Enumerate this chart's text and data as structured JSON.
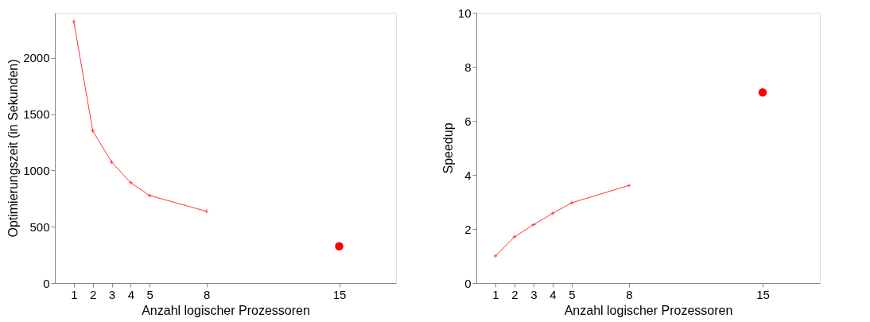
{
  "chart_data": [
    {
      "type": "line",
      "xlabel": "Anzahl logischer Prozessoren",
      "ylabel": "Optimierungszeit (in Sekunden)",
      "xlim": [
        0,
        18
      ],
      "xticks": [
        1,
        2,
        3,
        4,
        5,
        8,
        15
      ],
      "ylim": [
        0,
        2400
      ],
      "yticks": [
        0,
        500,
        1000,
        1500,
        2000
      ],
      "grid": false,
      "legend": false,
      "series": [
        {
          "marker": "cross",
          "color": "#ff0000",
          "x": [
            1,
            2,
            3,
            4,
            5,
            8
          ],
          "values": [
            2322,
            1351,
            1073,
            891,
            777,
            637
          ]
        },
        {
          "type": "scatter",
          "marker": "circle",
          "color": "#ff0000",
          "x": [
            15
          ],
          "values": [
            327
          ]
        }
      ]
    },
    {
      "type": "line",
      "xlabel": "Anzahl logischer Prozessoren",
      "ylabel": "Speedup",
      "xlim": [
        0,
        18
      ],
      "xticks": [
        1,
        2,
        3,
        4,
        5,
        8,
        15
      ],
      "ylim": [
        0,
        10
      ],
      "yticks": [
        0,
        2,
        4,
        6,
        8,
        10
      ],
      "grid": false,
      "legend": false,
      "series": [
        {
          "marker": "cross",
          "color": "#ff0000",
          "x": [
            1,
            2,
            3,
            4,
            5,
            8
          ],
          "values": [
            1.0,
            1.71,
            2.16,
            2.58,
            2.97,
            3.61
          ]
        },
        {
          "type": "scatter",
          "marker": "circle",
          "color": "#ff0000",
          "x": [
            15
          ],
          "values": [
            7.05
          ]
        }
      ]
    }
  ]
}
